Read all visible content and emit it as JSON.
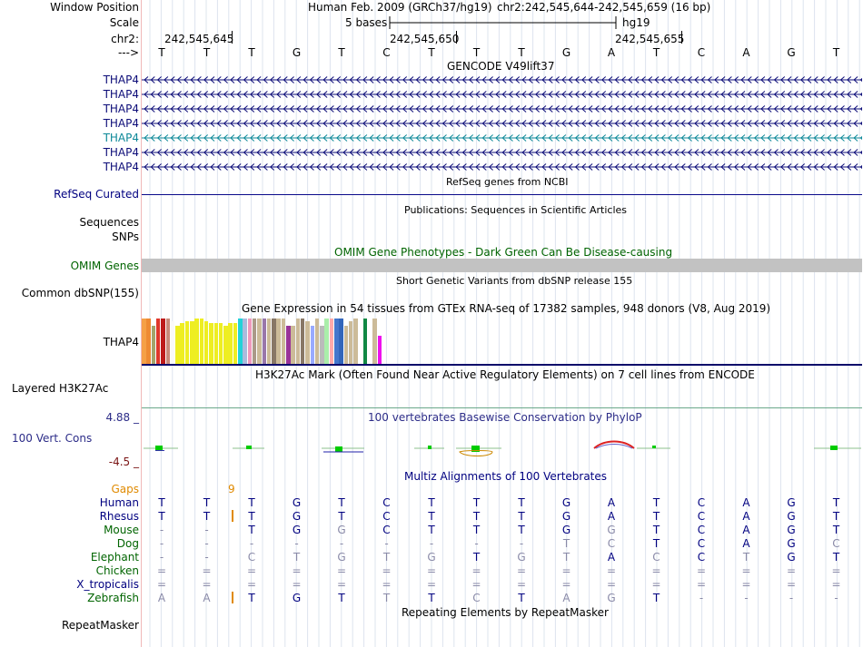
{
  "header": {
    "window_position_label": "Window Position",
    "assembly": "Human Feb. 2009 (GRCh37/hg19)",
    "range": "chr2:242,545,644-242,545,659 (16 bp)",
    "scale_label": "Scale",
    "scale_text": "5 bases",
    "scale_db": "hg19",
    "chrom_label": "chr2:",
    "positions": [
      "242,545,645",
      "242,545,650",
      "242,545,655"
    ],
    "strand_label": "--->",
    "bases": [
      "T",
      "T",
      "T",
      "G",
      "T",
      "C",
      "T",
      "T",
      "T",
      "G",
      "A",
      "T",
      "C",
      "A",
      "G",
      "T"
    ]
  },
  "gencode": {
    "title": "GENCODE V49lift37",
    "genes": [
      "THAP4",
      "THAP4",
      "THAP4",
      "THAP4",
      "THAP4",
      "THAP4",
      "THAP4"
    ],
    "highlight_index": 4,
    "color_main": "#0c0c78",
    "color_highlight": "#0c8898"
  },
  "refseq": {
    "title": "RefSeq genes from NCBI",
    "label": "RefSeq Curated"
  },
  "publications": {
    "title": "Publications: Sequences in Scientific Articles",
    "labels": [
      "Sequences",
      "SNPs"
    ]
  },
  "omim": {
    "title": "OMIM Gene Phenotypes - Dark Green Can Be Disease-causing",
    "label": "OMIM Genes"
  },
  "dbsnp": {
    "title": "Short Genetic Variants from dbSNP release 155",
    "label": "Common dbSNP(155)"
  },
  "gtex": {
    "title": "Gene Expression in 54 tissues from GTEx RNA-seq of 17382 samples, 948 donors (V8, Aug 2019)",
    "label": "THAP4",
    "bars": [
      {
        "c": "#f5a046",
        "v": 0.96
      },
      {
        "c": "#ee8a33",
        "v": 0.96
      },
      {
        "c": "#a4a46c",
        "v": 0.8
      },
      {
        "c": "#e0372b",
        "v": 0.96
      },
      {
        "c": "#bd1a1a",
        "v": 0.96
      },
      {
        "c": "#c88a7a",
        "v": 0.96
      },
      {
        "c": "#fafafa",
        "v": 0.9
      },
      {
        "c": "#eeee22",
        "v": 0.8
      },
      {
        "c": "#eeee22",
        "v": 0.86
      },
      {
        "c": "#eeee22",
        "v": 0.9
      },
      {
        "c": "#eeee22",
        "v": 0.9
      },
      {
        "c": "#eeee22",
        "v": 0.96
      },
      {
        "c": "#eeee22",
        "v": 0.96
      },
      {
        "c": "#eeee22",
        "v": 0.9
      },
      {
        "c": "#eeee22",
        "v": 0.86
      },
      {
        "c": "#eeee22",
        "v": 0.86
      },
      {
        "c": "#eeee22",
        "v": 0.86
      },
      {
        "c": "#eeee22",
        "v": 0.8
      },
      {
        "c": "#eeee22",
        "v": 0.86
      },
      {
        "c": "#eeee22",
        "v": 0.86
      },
      {
        "c": "#22d2d8",
        "v": 0.96
      },
      {
        "c": "#aabbdd",
        "v": 0.96
      },
      {
        "c": "#ee99bb",
        "v": 0.96
      },
      {
        "c": "#aa9988",
        "v": 0.96
      },
      {
        "c": "#ccbb99",
        "v": 0.96
      },
      {
        "c": "#9977aa",
        "v": 0.96
      },
      {
        "c": "#ccbb99",
        "v": 0.96
      },
      {
        "c": "#887766",
        "v": 0.96
      },
      {
        "c": "#ccbb99",
        "v": 0.96
      },
      {
        "c": "#ccbb99",
        "v": 0.96
      },
      {
        "c": "#993399",
        "v": 0.8
      },
      {
        "c": "#ccbb99",
        "v": 0.8
      },
      {
        "c": "#ccbb99",
        "v": 0.96
      },
      {
        "c": "#887766",
        "v": 0.96
      },
      {
        "c": "#ccbb99",
        "v": 0.9
      },
      {
        "c": "#99aaff",
        "v": 0.8
      },
      {
        "c": "#ccbb99",
        "v": 0.96
      },
      {
        "c": "#bbbbbb",
        "v": 0.8
      },
      {
        "c": "#aaeeaa",
        "v": 0.96
      },
      {
        "c": "#ffaaaa",
        "v": 0.96
      },
      {
        "c": "#4477cc",
        "v": 0.96
      },
      {
        "c": "#3366bb",
        "v": 0.96
      },
      {
        "c": "#ccbb99",
        "v": 0.8
      },
      {
        "c": "#ccbb99",
        "v": 0.9
      },
      {
        "c": "#ccbb99",
        "v": 0.96
      },
      {
        "c": "#ffffff",
        "v": 0.9
      },
      {
        "c": "#118844",
        "v": 0.96
      },
      {
        "c": "#ffffff",
        "v": 0.7
      },
      {
        "c": "#ccbb99",
        "v": 0.96
      },
      {
        "c": "#ee11ee",
        "v": 0.6
      }
    ]
  },
  "h3k27ac": {
    "title": "H3K27Ac Mark (Often Found Near Active Regulatory Elements) on 7 cell lines from ENCODE",
    "label": "Layered H3K27Ac"
  },
  "phylop": {
    "title": "100 vertebrates Basewise Conservation by PhyloP",
    "label": "100 Vert. Cons",
    "max": "4.88 _",
    "min": "-4.5 _"
  },
  "multiz": {
    "title": "Multiz Alignments of 100 Vertebrates",
    "gaps_label": "Gaps",
    "gap_count": "9",
    "species": [
      {
        "name": "Human",
        "seq": [
          "T",
          "T",
          "T",
          "G",
          "T",
          "C",
          "T",
          "T",
          "T",
          "G",
          "A",
          "T",
          "C",
          "A",
          "G",
          "T"
        ]
      },
      {
        "name": "Rhesus",
        "seq": [
          "T",
          "T",
          "T",
          "G",
          "T",
          "C",
          "T",
          "T",
          "T",
          "G",
          "A",
          "T",
          "C",
          "A",
          "G",
          "T"
        ]
      },
      {
        "name": "Mouse",
        "seq": [
          "-",
          "-",
          "T",
          "G",
          "G",
          "C",
          "T",
          "T",
          "T",
          "G",
          "G",
          "T",
          "C",
          "A",
          "G",
          "T"
        ]
      },
      {
        "name": "Dog",
        "seq": [
          "-",
          "-",
          "-",
          "-",
          "-",
          "-",
          "-",
          "-",
          "-",
          "T",
          "C",
          "T",
          "C",
          "A",
          "G",
          "C"
        ]
      },
      {
        "name": "Elephant",
        "seq": [
          "-",
          "-",
          "C",
          "T",
          "G",
          "T",
          "G",
          "T",
          "G",
          "T",
          "A",
          "C",
          "C",
          "T",
          "G",
          "T"
        ]
      },
      {
        "name": "Chicken",
        "seq": [
          "=",
          "=",
          "=",
          "=",
          "=",
          "=",
          "=",
          "=",
          "=",
          "=",
          "=",
          "=",
          "=",
          "=",
          "=",
          "="
        ]
      },
      {
        "name": "X_tropicalis",
        "seq": [
          "=",
          "=",
          "=",
          "=",
          "=",
          "=",
          "=",
          "=",
          "=",
          "=",
          "=",
          "=",
          "=",
          "=",
          "=",
          "="
        ]
      },
      {
        "name": "Zebrafish",
        "seq": [
          "A",
          "A",
          "T",
          "G",
          "T",
          "T",
          "T",
          "C",
          "T",
          "A",
          "G",
          "T",
          "-",
          "-",
          "-",
          "-"
        ]
      }
    ]
  },
  "repeatmasker": {
    "title": "Repeating Elements by RepeatMasker",
    "label": "RepeatMasker"
  },
  "colors": {
    "navy": "#000080",
    "green": "#006400",
    "orange": "#e08a00",
    "match": "#000080",
    "mismatch": "#8a8aa8"
  }
}
